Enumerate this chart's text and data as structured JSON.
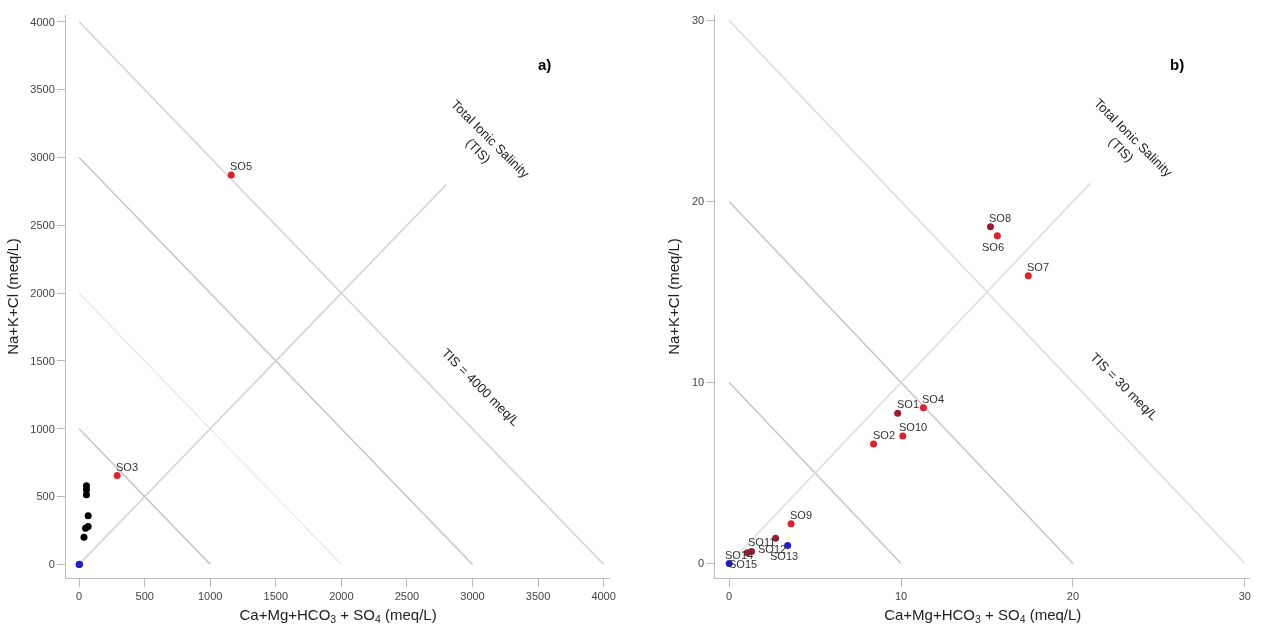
{
  "chart_data": [
    {
      "type": "scatter",
      "title": "a)",
      "xlabel": "Ca+Mg+HCO$_{3}$ + SO$_{4}$ (meq/L)",
      "ylabel": "Na+K+Cl (meq/L)",
      "xlim": [
        -100,
        4050
      ],
      "ylim": [
        -100,
        4050
      ],
      "xticks": [
        0,
        500,
        1000,
        1500,
        2000,
        2500,
        3000,
        3500,
        4000
      ],
      "yticks": [
        0,
        500,
        1000,
        1500,
        2000,
        2500,
        3000,
        3500,
        4000
      ],
      "marker": "circle",
      "series": [
        {
          "type": "line",
          "marker": "none",
          "color": "#c8c8c8",
          "x": [
            0,
            1000
          ],
          "values": [
            1000,
            0
          ]
        },
        {
          "type": "line",
          "marker": "none",
          "color": "#ececec",
          "x": [
            0,
            2000
          ],
          "values": [
            2000,
            0
          ]
        },
        {
          "type": "line",
          "marker": "none",
          "color": "#c8c8c8",
          "x": [
            0,
            3000
          ],
          "values": [
            3000,
            0
          ]
        },
        {
          "type": "line",
          "marker": "none",
          "color": "#d4d4d4",
          "name": "TIS = 4000 meq/L",
          "x": [
            0,
            4000
          ],
          "values": [
            4000,
            0
          ]
        },
        {
          "type": "line",
          "marker": "none",
          "color": "#d4d4d4",
          "name": "Total Ionic Salinity (TIS)",
          "x": [
            0,
            2800
          ],
          "values": [
            0,
            2800
          ]
        },
        {
          "color": "#000000",
          "x": [
            56,
            56,
            56,
            69,
            69,
            49,
            37
          ],
          "values": [
            580,
            551,
            514,
            358,
            279,
            267,
            200
          ]
        },
        {
          "color": "#e0202c",
          "x": [
            290,
            1160
          ],
          "values": [
            655,
            2870
          ]
        },
        {
          "color": "#1f1fd0",
          "x": [
            0,
            3.4
          ],
          "values": [
            0,
            1
          ]
        }
      ],
      "annotations": [
        {
          "text": "SO3",
          "x": 290,
          "y": 655
        },
        {
          "text": "SO5",
          "x": 1160,
          "y": 2870
        }
      ]
    },
    {
      "type": "scatter",
      "title": "b)",
      "xlabel": "Ca+Mg+HCO$_{3}$ + SO$_{4}$ (meq/L)",
      "ylabel": "Na+K+Cl (meq/L)",
      "xlim": [
        -0.8,
        30.3
      ],
      "ylim": [
        -0.8,
        30.3
      ],
      "xticks": [
        0,
        10,
        20,
        30
      ],
      "yticks": [
        0,
        10,
        20,
        30
      ],
      "marker": "circle",
      "series": [
        {
          "type": "line",
          "marker": "none",
          "color": "#c8c8c8",
          "x": [
            0,
            10
          ],
          "values": [
            10,
            0
          ]
        },
        {
          "type": "line",
          "marker": "none",
          "color": "#c8c8c8",
          "x": [
            0,
            20
          ],
          "values": [
            20,
            0
          ]
        },
        {
          "type": "line",
          "marker": "none",
          "color": "#dedede",
          "name": "TIS = 30 meq/L",
          "x": [
            0,
            30
          ],
          "values": [
            30,
            0
          ]
        },
        {
          "type": "line",
          "marker": "none",
          "color": "#dedede",
          "name": "Total Ionic Salinity (TIS)",
          "x": [
            0,
            21
          ],
          "values": [
            0,
            21
          ]
        },
        {
          "color": "#e0202c",
          "x": [
            15.6,
            17.4,
            11.3,
            10.1,
            8.4,
            3.6
          ],
          "values": [
            18.1,
            15.9,
            8.6,
            7.05,
            6.6,
            2.2
          ]
        },
        {
          "color": "#9b1b30",
          "x": [
            15.2,
            9.8,
            2.7,
            1.3,
            1.05
          ],
          "values": [
            18.6,
            8.3,
            1.4,
            0.67,
            0.6
          ]
        },
        {
          "color": "#1f1fd0",
          "x": [
            3.4,
            0
          ],
          "values": [
            1.0,
            0
          ]
        }
      ],
      "annotations": [
        {
          "text": "SO8",
          "x": 15.2,
          "y": 18.6
        },
        {
          "text": "SO6",
          "x": 15.6,
          "y": 18.1
        },
        {
          "text": "SO7",
          "x": 17.4,
          "y": 15.9
        },
        {
          "text": "SO1",
          "x": 9.8,
          "y": 8.3
        },
        {
          "text": "SO4",
          "x": 11.3,
          "y": 8.6
        },
        {
          "text": "SO10",
          "x": 10.1,
          "y": 7.05
        },
        {
          "text": "SO2",
          "x": 8.4,
          "y": 6.6
        },
        {
          "text": "SO9",
          "x": 3.6,
          "y": 2.2
        },
        {
          "text": "SO12",
          "x": 2.7,
          "y": 1.4
        },
        {
          "text": "SO13",
          "x": 3.4,
          "y": 1.0
        },
        {
          "text": "SO11",
          "x": 1.3,
          "y": 0.67
        },
        {
          "text": "SO15",
          "x": 1.05,
          "y": 0.6
        },
        {
          "text": "SO14",
          "x": 0,
          "y": 0
        }
      ]
    }
  ]
}
